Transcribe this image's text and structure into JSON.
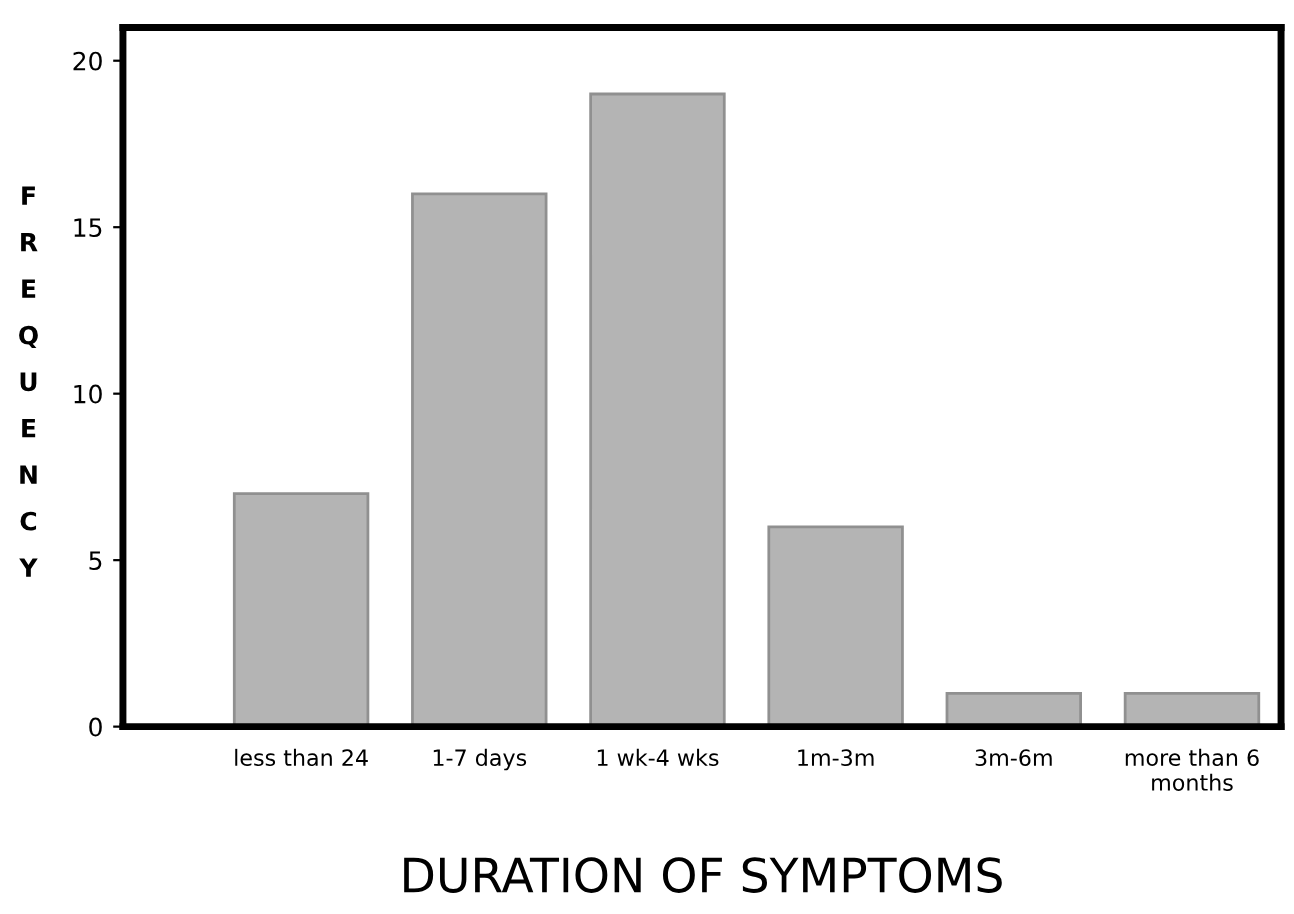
{
  "chart_data": {
    "type": "bar",
    "xlabel": "DURATION OF SYMPTOMS",
    "ylabel": "FREQUENCY",
    "categories": [
      "less than 24",
      "1-7 days",
      "1 wk-4 wks",
      "1m-3m",
      "3m-6m",
      "more than 6\nmonths"
    ],
    "values": [
      7,
      16,
      19,
      6,
      1,
      1
    ],
    "color": "#b4b4b4",
    "ylim": [
      0,
      21
    ],
    "yticks": [
      0,
      5,
      10,
      15,
      20
    ],
    "grid": false,
    "legend": false
  }
}
